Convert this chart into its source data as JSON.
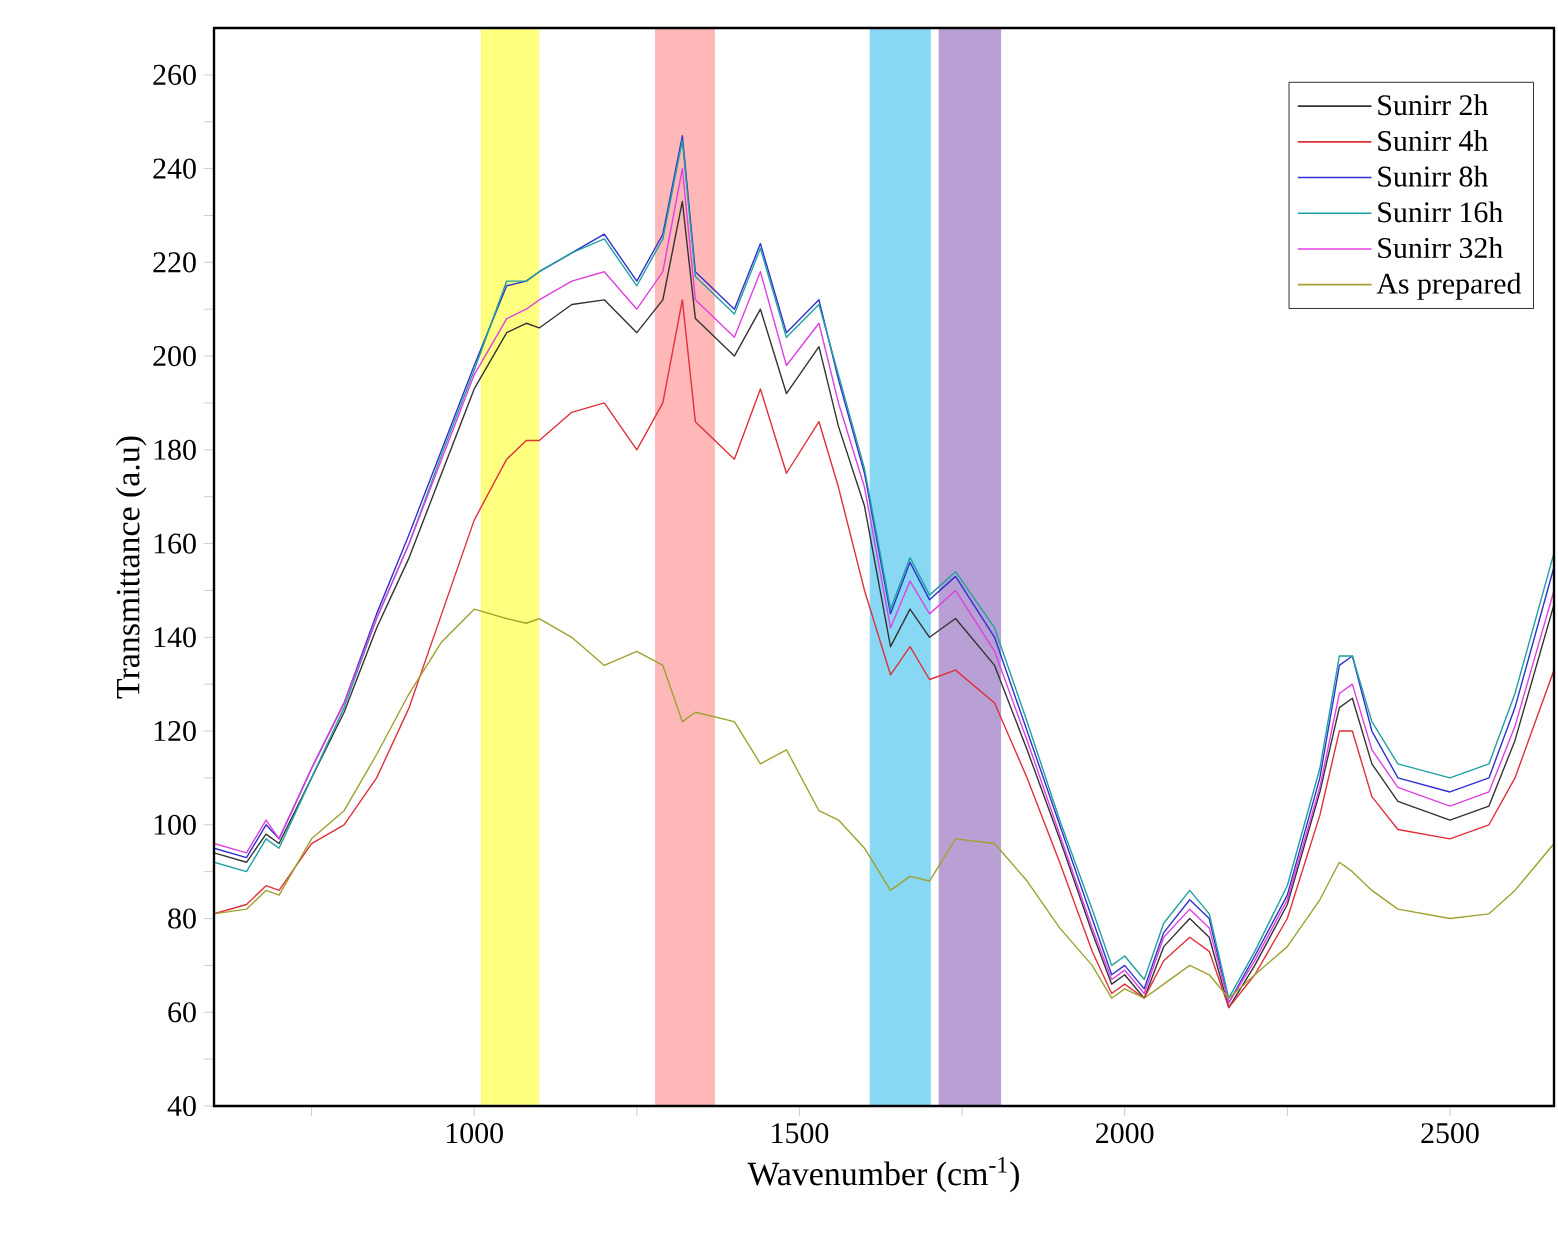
{
  "chart_data": {
    "type": "line",
    "xlabel": "Wavenumber (cm$^{-1}$)",
    "ylabel": "Transmittance (a.u)",
    "x": [
      600,
      650,
      680,
      700,
      750,
      800,
      850,
      900,
      950,
      1000,
      1050,
      1080,
      1100,
      1150,
      1200,
      1250,
      1290,
      1320,
      1340,
      1400,
      1440,
      1480,
      1530,
      1560,
      1600,
      1640,
      1670,
      1700,
      1740,
      1800,
      1850,
      1900,
      1950,
      1980,
      2000,
      2030,
      2060,
      2100,
      2130,
      2160,
      2200,
      2250,
      2300,
      2330,
      2350,
      2380,
      2420,
      2500,
      2560,
      2600,
      2660
    ],
    "series": [
      {
        "name": "Sunirr 2h",
        "color": "#333333",
        "values": [
          94,
          92,
          98,
          96,
          110,
          124,
          142,
          157,
          175,
          193,
          205,
          207,
          206,
          211,
          212,
          205,
          212,
          233,
          208,
          200,
          210,
          192,
          202,
          185,
          168,
          138,
          146,
          140,
          144,
          134,
          116,
          97,
          77,
          66,
          68,
          63,
          74,
          80,
          76,
          61,
          70,
          83,
          107,
          125,
          127,
          113,
          105,
          101,
          104,
          118,
          147
        ]
      },
      {
        "name": "Sunirr 4h",
        "color": "#e0303a",
        "values": [
          81,
          83,
          87,
          86,
          96,
          100,
          110,
          125,
          145,
          165,
          178,
          182,
          182,
          188,
          190,
          180,
          190,
          212,
          186,
          178,
          193,
          175,
          186,
          172,
          150,
          132,
          138,
          131,
          133,
          126,
          110,
          92,
          73,
          64,
          66,
          63,
          71,
          76,
          73,
          61,
          68,
          80,
          102,
          120,
          120,
          106,
          99,
          97,
          100,
          110,
          133
        ]
      },
      {
        "name": "Sunirr 8h",
        "color": "#3030d0",
        "values": [
          95,
          93,
          100,
          97,
          112,
          126,
          145,
          162,
          180,
          198,
          215,
          216,
          218,
          222,
          226,
          216,
          226,
          247,
          218,
          210,
          224,
          205,
          212,
          195,
          175,
          145,
          156,
          148,
          153,
          140,
          120,
          100,
          80,
          68,
          70,
          65,
          77,
          84,
          80,
          62,
          72,
          85,
          110,
          134,
          136,
          120,
          110,
          107,
          110,
          125,
          155
        ]
      },
      {
        "name": "Sunirr 16h",
        "color": "#20a0a0",
        "values": [
          92,
          90,
          97,
          95,
          110,
          125,
          144,
          160,
          179,
          197,
          216,
          216,
          218,
          222,
          225,
          215,
          225,
          246,
          217,
          209,
          223,
          204,
          211,
          196,
          176,
          146,
          157,
          149,
          154,
          142,
          122,
          101,
          82,
          70,
          72,
          67,
          79,
          86,
          81,
          63,
          73,
          87,
          112,
          136,
          136,
          122,
          113,
          110,
          113,
          128,
          158
        ]
      },
      {
        "name": "Sunirr 32h",
        "color": "#e040e0",
        "values": [
          96,
          94,
          101,
          97,
          112,
          126,
          144,
          160,
          178,
          196,
          208,
          210,
          212,
          216,
          218,
          210,
          218,
          240,
          212,
          204,
          218,
          198,
          207,
          190,
          172,
          142,
          152,
          145,
          150,
          137,
          118,
          98,
          78,
          67,
          69,
          64,
          76,
          82,
          78,
          62,
          71,
          84,
          108,
          128,
          130,
          116,
          108,
          104,
          107,
          121,
          150
        ]
      },
      {
        "name": "As prepared",
        "color": "#a0a030",
        "values": [
          81,
          82,
          86,
          85,
          97,
          103,
          115,
          128,
          139,
          146,
          144,
          143,
          144,
          140,
          134,
          137,
          134,
          122,
          124,
          122,
          113,
          116,
          103,
          101,
          95,
          86,
          89,
          88,
          97,
          96,
          88,
          78,
          70,
          63,
          65,
          63,
          66,
          70,
          68,
          63,
          68,
          74,
          84,
          92,
          90,
          86,
          82,
          80,
          81,
          86,
          96
        ]
      }
    ],
    "xlim": [
      600,
      2660
    ],
    "ylim": [
      40,
      270
    ],
    "xticks": [
      {
        "value": 750,
        "label": null
      },
      1000,
      {
        "value": 1250,
        "label": null
      },
      1500,
      {
        "value": 1750,
        "label": null
      },
      2000,
      {
        "value": 2250,
        "label": null
      },
      2500
    ],
    "yticks": [
      40,
      {
        "value": 50,
        "label": null
      },
      60,
      {
        "value": 70,
        "label": null
      },
      80,
      {
        "value": 90,
        "label": null
      },
      100,
      {
        "value": 110,
        "label": null
      },
      120,
      {
        "value": 130,
        "label": null
      },
      140,
      {
        "value": 150,
        "label": null
      },
      160,
      {
        "value": 170,
        "label": null
      },
      180,
      {
        "value": 190,
        "label": null
      },
      200,
      {
        "value": 210,
        "label": null
      },
      220,
      {
        "value": 230,
        "label": null
      },
      240,
      {
        "value": 250,
        "label": null
      },
      260
    ],
    "bands": [
      {
        "axis": "x",
        "from": 1010,
        "to": 1100,
        "color": "#ffff80"
      },
      {
        "axis": "x",
        "from": 1278,
        "to": 1370,
        "color": "#ffb8b8"
      },
      {
        "axis": "x",
        "from": 1608,
        "to": 1702,
        "color": "#88d8f4"
      },
      {
        "axis": "x",
        "from": 1714,
        "to": 1810,
        "color": "#b8a0d4"
      }
    ],
    "legend": "top right"
  }
}
